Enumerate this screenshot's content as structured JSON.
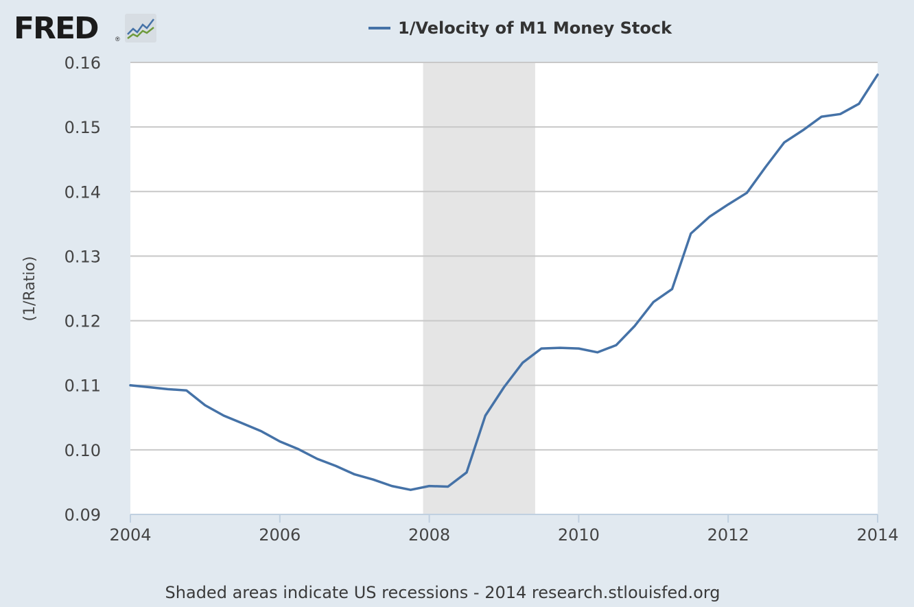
{
  "logo": {
    "text": "FRED",
    "registered": "®"
  },
  "chart_data": {
    "type": "line",
    "legend_label": "1/Velocity of M1 Money Stock",
    "ylabel": "(1/Ratio)",
    "xlabel": "",
    "xlim": [
      2004,
      2014
    ],
    "ylim": [
      0.09,
      0.16
    ],
    "x_ticks": [
      2004,
      2006,
      2008,
      2010,
      2012,
      2014
    ],
    "y_ticks": [
      0.09,
      0.1,
      0.11,
      0.12,
      0.13,
      0.14,
      0.15,
      0.16
    ],
    "y_tick_labels": [
      "0.09",
      "0.10",
      "0.11",
      "0.12",
      "0.13",
      "0.14",
      "0.15",
      "0.16"
    ],
    "recessions": [
      {
        "start": 2007.917,
        "end": 2009.417
      }
    ],
    "series": [
      {
        "name": "1/Velocity of M1 Money Stock",
        "color": "#4572a7",
        "x": [
          2004.0,
          2004.25,
          2004.5,
          2004.75,
          2005.0,
          2005.25,
          2005.5,
          2005.75,
          2006.0,
          2006.25,
          2006.5,
          2006.75,
          2007.0,
          2007.25,
          2007.5,
          2007.75,
          2008.0,
          2008.25,
          2008.5,
          2008.75,
          2009.0,
          2009.25,
          2009.5,
          2009.75,
          2010.0,
          2010.25,
          2010.5,
          2010.75,
          2011.0,
          2011.25,
          2011.5,
          2011.75,
          2012.0,
          2012.25,
          2012.5,
          2012.75,
          2013.0,
          2013.25,
          2013.5,
          2013.75,
          2014.0
        ],
        "values": [
          0.11,
          0.1097,
          0.1094,
          0.1092,
          0.1069,
          0.1053,
          0.1041,
          0.1029,
          0.1013,
          0.1001,
          0.0986,
          0.0975,
          0.0962,
          0.0954,
          0.0944,
          0.0938,
          0.0944,
          0.0943,
          0.0965,
          0.1053,
          0.1097,
          0.1135,
          0.1157,
          0.1158,
          0.1157,
          0.1151,
          0.1162,
          0.1192,
          0.1229,
          0.1249,
          0.1335,
          0.1361,
          0.138,
          0.1398,
          0.1438,
          0.1476,
          0.1495,
          0.1516,
          0.152,
          0.1536,
          0.1581
        ]
      }
    ]
  },
  "footer": {
    "text": "Shaded areas indicate US recessions - 2014 research.stlouisfed.org"
  }
}
